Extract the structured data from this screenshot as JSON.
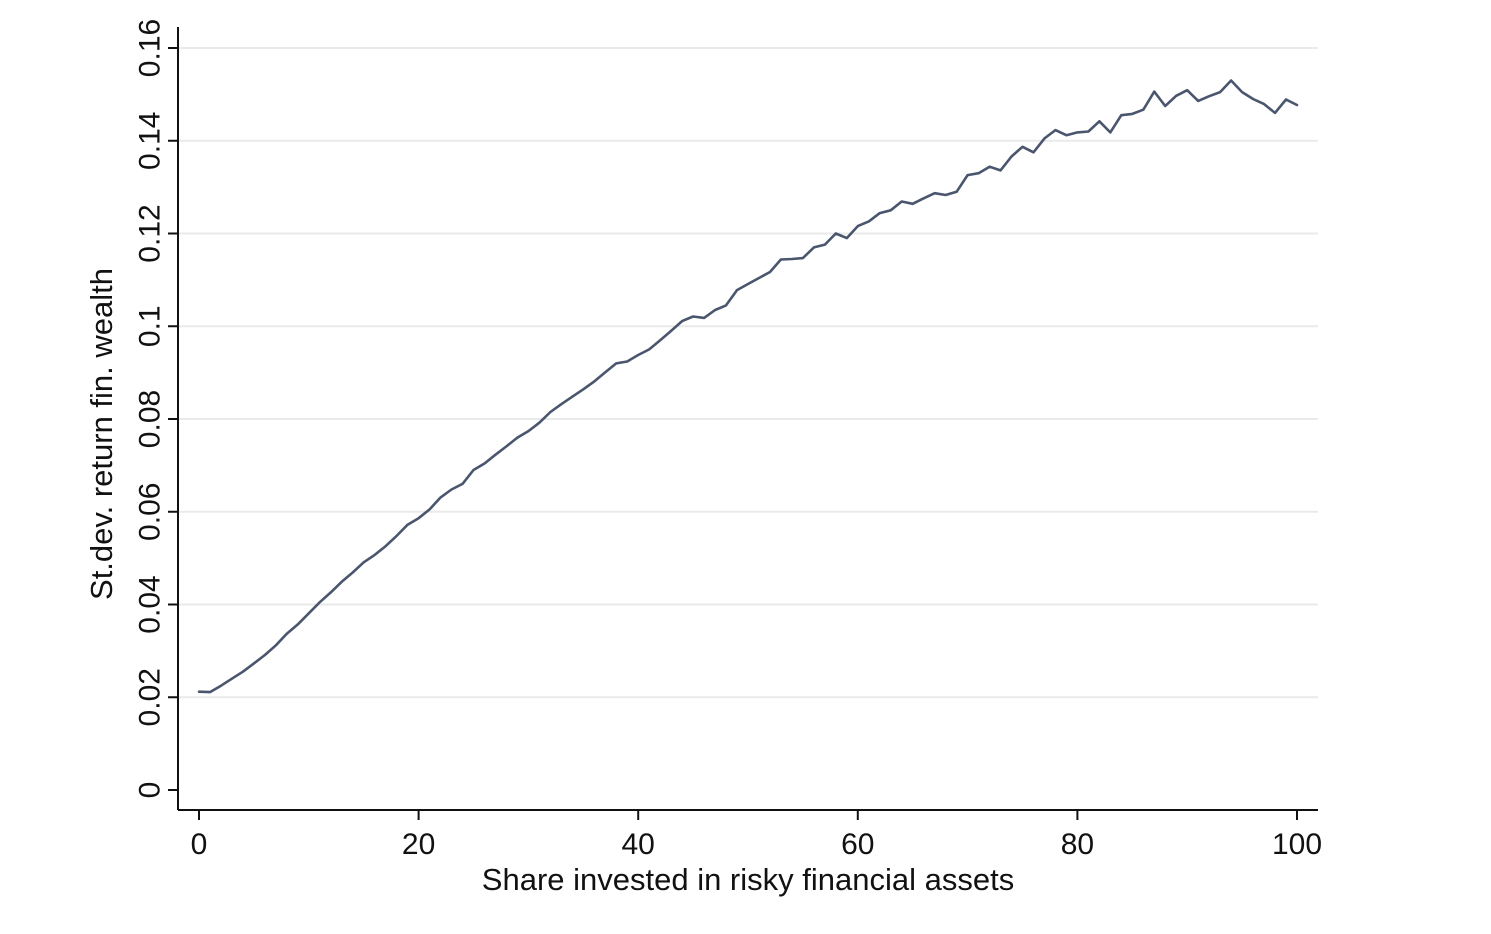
{
  "chart_data": {
    "type": "line",
    "xlabel": "Share invested in risky financial assets",
    "ylabel": "St.dev. return fin. wealth",
    "xlim": [
      0,
      100
    ],
    "ylim": [
      0,
      0.16
    ],
    "xticks": [
      0,
      20,
      40,
      60,
      80,
      100
    ],
    "yticks": [
      0,
      0.02,
      0.04,
      0.06,
      0.08,
      0.1,
      0.12,
      0.14,
      0.16
    ],
    "xtick_labels": [
      "0",
      "20",
      "40",
      "60",
      "80",
      "100"
    ],
    "ytick_labels": [
      "0",
      "0.02",
      "0.04",
      "0.06",
      "0.08",
      "0.1",
      "0.12",
      "0.14",
      "0.16"
    ],
    "grid": "horizontal",
    "colors": {
      "series": "#4a566e",
      "grid": "#eaeaea",
      "axis": "#111111"
    },
    "series": [
      {
        "x": [
          0,
          1,
          2,
          3,
          4,
          5,
          6,
          7,
          8,
          9,
          10,
          11,
          12,
          13,
          14,
          15,
          16,
          17,
          18,
          19,
          20,
          21,
          22,
          23,
          24,
          25,
          26,
          27,
          28,
          29,
          30,
          31,
          32,
          33,
          34,
          35,
          36,
          37,
          38,
          39,
          40,
          41,
          42,
          43,
          44,
          45,
          46,
          47,
          48,
          49,
          50,
          51,
          52,
          53,
          54,
          55,
          56,
          57,
          58,
          59,
          60,
          61,
          62,
          63,
          64,
          65,
          66,
          67,
          68,
          69,
          70,
          71,
          72,
          73,
          74,
          75,
          76,
          77,
          78,
          79,
          80,
          81,
          82,
          83,
          84,
          85,
          86,
          87,
          88,
          89,
          90,
          91,
          92,
          93,
          94,
          95,
          96,
          97,
          98,
          99,
          100
        ],
        "y": [
          0.0212,
          0.0211,
          0.0225,
          0.024,
          0.0255,
          0.0273,
          0.0291,
          0.0312,
          0.0337,
          0.0357,
          0.0381,
          0.0405,
          0.0426,
          0.0449,
          0.0469,
          0.0491,
          0.0507,
          0.0526,
          0.0548,
          0.0572,
          0.0586,
          0.0605,
          0.0631,
          0.0648,
          0.066,
          0.069,
          0.0704,
          0.0723,
          0.0741,
          0.076,
          0.0774,
          0.0792,
          0.0815,
          0.0832,
          0.0848,
          0.0864,
          0.0881,
          0.0901,
          0.092,
          0.0924,
          0.0938,
          0.095,
          0.097,
          0.099,
          0.1011,
          0.1021,
          0.1018,
          0.1035,
          0.1045,
          0.1078,
          0.1091,
          0.1104,
          0.1117,
          0.1144,
          0.1145,
          0.1147,
          0.117,
          0.1176,
          0.12,
          0.119,
          0.1216,
          0.1226,
          0.1244,
          0.125,
          0.1269,
          0.1264,
          0.1276,
          0.1287,
          0.1283,
          0.129,
          0.1326,
          0.133,
          0.1344,
          0.1336,
          0.1366,
          0.1387,
          0.1375,
          0.1405,
          0.1423,
          0.1412,
          0.1418,
          0.142,
          0.1442,
          0.1418,
          0.1455,
          0.1458,
          0.1467,
          0.1506,
          0.1475,
          0.1497,
          0.1509,
          0.1486,
          0.1496,
          0.1505,
          0.153,
          0.1505,
          0.149,
          0.1479,
          0.146,
          0.1489,
          0.1477
        ]
      }
    ]
  }
}
